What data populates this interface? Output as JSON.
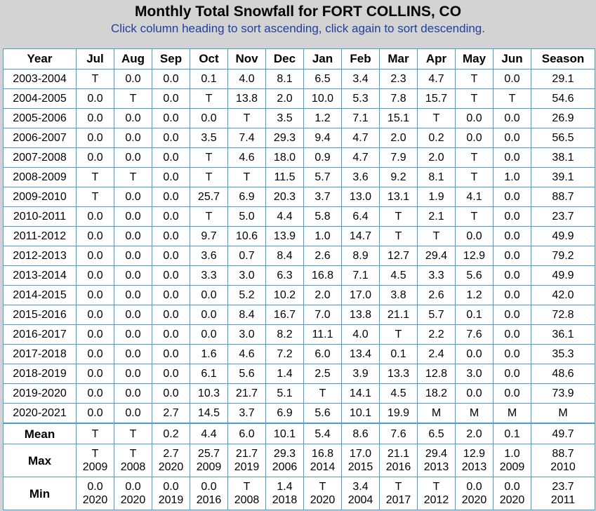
{
  "title": "Monthly Total Snowfall for FORT COLLINS, CO",
  "subtitle": "Click column heading to sort ascending, click again to sort descending.",
  "columns": [
    "Year",
    "Jul",
    "Aug",
    "Sep",
    "Oct",
    "Nov",
    "Dec",
    "Jan",
    "Feb",
    "Mar",
    "Apr",
    "May",
    "Jun",
    "Season"
  ],
  "rows": [
    [
      "2003-2004",
      "T",
      "0.0",
      "0.0",
      "0.1",
      "4.0",
      "8.1",
      "6.5",
      "3.4",
      "2.3",
      "4.7",
      "T",
      "0.0",
      "29.1"
    ],
    [
      "2004-2005",
      "0.0",
      "T",
      "0.0",
      "T",
      "13.8",
      "2.0",
      "10.0",
      "5.3",
      "7.8",
      "15.7",
      "T",
      "T",
      "54.6"
    ],
    [
      "2005-2006",
      "0.0",
      "0.0",
      "0.0",
      "0.0",
      "T",
      "3.5",
      "1.2",
      "7.1",
      "15.1",
      "T",
      "0.0",
      "0.0",
      "26.9"
    ],
    [
      "2006-2007",
      "0.0",
      "0.0",
      "0.0",
      "3.5",
      "7.4",
      "29.3",
      "9.4",
      "4.7",
      "2.0",
      "0.2",
      "0.0",
      "0.0",
      "56.5"
    ],
    [
      "2007-2008",
      "0.0",
      "0.0",
      "0.0",
      "T",
      "4.6",
      "18.0",
      "0.9",
      "4.7",
      "7.9",
      "2.0",
      "T",
      "0.0",
      "38.1"
    ],
    [
      "2008-2009",
      "T",
      "T",
      "0.0",
      "T",
      "T",
      "11.5",
      "5.7",
      "3.6",
      "9.2",
      "8.1",
      "T",
      "1.0",
      "39.1"
    ],
    [
      "2009-2010",
      "T",
      "0.0",
      "0.0",
      "25.7",
      "6.9",
      "20.3",
      "3.7",
      "13.0",
      "13.1",
      "1.9",
      "4.1",
      "0.0",
      "88.7"
    ],
    [
      "2010-2011",
      "0.0",
      "0.0",
      "0.0",
      "T",
      "5.0",
      "4.4",
      "5.8",
      "6.4",
      "T",
      "2.1",
      "T",
      "0.0",
      "23.7"
    ],
    [
      "2011-2012",
      "0.0",
      "0.0",
      "0.0",
      "9.7",
      "10.6",
      "13.9",
      "1.0",
      "14.7",
      "T",
      "T",
      "0.0",
      "0.0",
      "49.9"
    ],
    [
      "2012-2013",
      "0.0",
      "0.0",
      "0.0",
      "3.6",
      "0.7",
      "8.4",
      "2.6",
      "8.9",
      "12.7",
      "29.4",
      "12.9",
      "0.0",
      "79.2"
    ],
    [
      "2013-2014",
      "0.0",
      "0.0",
      "0.0",
      "3.3",
      "3.0",
      "6.3",
      "16.8",
      "7.1",
      "4.5",
      "3.3",
      "5.6",
      "0.0",
      "49.9"
    ],
    [
      "2014-2015",
      "0.0",
      "0.0",
      "0.0",
      "0.0",
      "5.2",
      "10.2",
      "2.0",
      "17.0",
      "3.8",
      "2.6",
      "1.2",
      "0.0",
      "42.0"
    ],
    [
      "2015-2016",
      "0.0",
      "0.0",
      "0.0",
      "0.0",
      "8.4",
      "16.7",
      "7.0",
      "13.8",
      "21.1",
      "5.7",
      "0.1",
      "0.0",
      "72.8"
    ],
    [
      "2016-2017",
      "0.0",
      "0.0",
      "0.0",
      "0.0",
      "3.0",
      "8.2",
      "11.1",
      "4.0",
      "T",
      "2.2",
      "7.6",
      "0.0",
      "36.1"
    ],
    [
      "2017-2018",
      "0.0",
      "0.0",
      "0.0",
      "1.6",
      "4.6",
      "7.2",
      "6.0",
      "13.4",
      "0.1",
      "2.4",
      "0.0",
      "0.0",
      "35.3"
    ],
    [
      "2018-2019",
      "0.0",
      "0.0",
      "0.0",
      "6.1",
      "5.6",
      "1.4",
      "2.5",
      "3.9",
      "13.3",
      "12.8",
      "3.0",
      "0.0",
      "48.6"
    ],
    [
      "2019-2020",
      "0.0",
      "0.0",
      "0.0",
      "10.3",
      "21.7",
      "5.1",
      "T",
      "14.1",
      "4.5",
      "18.2",
      "0.0",
      "0.0",
      "73.9"
    ],
    [
      "2020-2021",
      "0.0",
      "0.0",
      "2.7",
      "14.5",
      "3.7",
      "6.9",
      "5.6",
      "10.1",
      "19.9",
      "M",
      "M",
      "M",
      "M"
    ]
  ],
  "summary": {
    "mean": {
      "label": "Mean",
      "values": [
        "T",
        "T",
        "0.2",
        "4.4",
        "6.0",
        "10.1",
        "5.4",
        "8.6",
        "7.6",
        "6.5",
        "2.0",
        "0.1",
        "49.7"
      ]
    },
    "max": {
      "label": "Max",
      "values": [
        "T",
        "T",
        "2.7",
        "25.7",
        "21.7",
        "29.3",
        "16.8",
        "17.0",
        "21.1",
        "29.4",
        "12.9",
        "1.0",
        "88.7"
      ],
      "years": [
        "2009",
        "2008",
        "2020",
        "2009",
        "2019",
        "2006",
        "2014",
        "2015",
        "2016",
        "2013",
        "2013",
        "2009",
        "2010"
      ]
    },
    "min": {
      "label": "Min",
      "values": [
        "0.0",
        "0.0",
        "0.0",
        "0.0",
        "T",
        "1.4",
        "T",
        "3.4",
        "T",
        "T",
        "0.0",
        "0.0",
        "23.7"
      ],
      "years": [
        "2020",
        "2020",
        "2019",
        "2016",
        "2008",
        "2018",
        "2020",
        "2004",
        "2017",
        "2012",
        "2020",
        "2020",
        "2011"
      ]
    }
  }
}
